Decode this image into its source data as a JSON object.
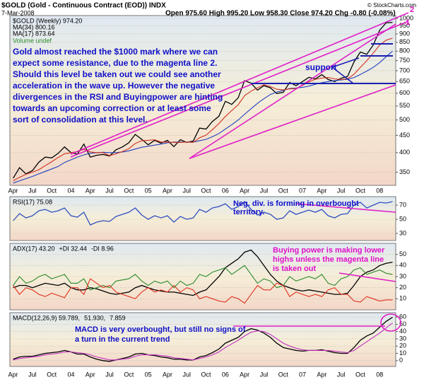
{
  "header": {
    "symbol": "$GOLD (Gold - Continuous Contract (EOD)) INDX",
    "date": "7-Mar-2008",
    "quote": "Open 975.60  High 995.20  Low 958.30  Close 974.20  Chg -0.80 (-0.08%)",
    "credit": "© StockCharts.com"
  },
  "chart_data": [
    {
      "type": "line",
      "log": true,
      "grid": true,
      "categories": [
        "Apr",
        null,
        null,
        "Jul",
        null,
        null,
        "Oct",
        null,
        null,
        "04",
        null,
        null,
        "Apr",
        null,
        null,
        "Jul",
        null,
        null,
        "Oct",
        null,
        null,
        "05",
        null,
        null,
        "Apr",
        null,
        null,
        "Jul",
        null,
        null,
        "Oct",
        null,
        null,
        "06",
        null,
        null,
        "Apr",
        null,
        null,
        "Jul",
        null,
        null,
        "Oct",
        null,
        null,
        "07",
        null,
        null,
        "Apr",
        null,
        null,
        "Jul",
        null,
        null,
        "Oct",
        null,
        null,
        "08",
        null,
        null
      ],
      "ylim": [
        320,
        1020
      ],
      "yticks": [
        350,
        400,
        450,
        500,
        550,
        600,
        650,
        700,
        750,
        800,
        850,
        900,
        950,
        1000
      ],
      "series": [
        {
          "name": "$GOLD (Weekly) 974.20",
          "color": "#000000",
          "values": [
            336,
            361,
            346,
            354,
            375,
            388,
            386,
            398,
            416,
            400,
            396,
            424,
            388,
            393,
            395,
            391,
            408,
            416,
            428,
            453,
            438,
            422,
            435,
            427,
            435,
            417,
            437,
            429,
            433,
            473,
            470,
            495,
            513,
            568,
            556,
            582,
            654,
            643,
            613,
            632,
            623,
            599,
            604,
            646,
            632,
            650,
            669,
            662,
            681,
            659,
            650,
            665,
            673,
            743,
            795,
            783,
            834,
            923,
            971,
            974
          ]
        },
        {
          "name": "MA(34) 800.16",
          "color": "#2040c0",
          "values": [
            325,
            330,
            335,
            340,
            346,
            352,
            358,
            364,
            374,
            381,
            388,
            394,
            398,
            400,
            401,
            400,
            400,
            402,
            405,
            410,
            415,
            418,
            421,
            424,
            428,
            430,
            430,
            430,
            430,
            434,
            438,
            446,
            456,
            470,
            484,
            500,
            520,
            540,
            560,
            578,
            595,
            605,
            612,
            620,
            622,
            625,
            630,
            638,
            645,
            650,
            654,
            657,
            660,
            668,
            682,
            698,
            716,
            740,
            770,
            800
          ]
        },
        {
          "name": "MA(17) 873.64",
          "color": "#d03020",
          "values": [
            330,
            338,
            345,
            350,
            356,
            366,
            376,
            387,
            397,
            400,
            403,
            409,
            402,
            400,
            400,
            392,
            397,
            403,
            411,
            426,
            434,
            435,
            437,
            430,
            430,
            429,
            429,
            430,
            429,
            443,
            451,
            468,
            488,
            512,
            533,
            555,
            590,
            609,
            623,
            636,
            628,
            617,
            614,
            618,
            620,
            633,
            649,
            660,
            666,
            668,
            662,
            659,
            662,
            683,
            716,
            749,
            789,
            834,
            862,
            874
          ]
        }
      ],
      "volume_note": "Volume undef",
      "annotations": [
        "Gold almost reached the $1000 mark where we can",
        "expect some resistance, due to the magenta line 2.",
        "Should this level be taken out we could see another",
        "acceleration in the wave up. However the negative",
        "divergences in the RSI and Buyingpower are hinting",
        "towards an upcoming correction or at least some",
        "sort of consolidation at this level."
      ],
      "support_label": "support",
      "line_labels": [
        "2",
        "1"
      ]
    },
    {
      "type": "line",
      "grid": true,
      "title": "RSI(17) 75.08",
      "ylim": [
        20,
        82
      ],
      "yticks": [
        30,
        50,
        70
      ],
      "series": [
        {
          "color": "#3050c0",
          "values": [
            48,
            58,
            52,
            55,
            62,
            64,
            60,
            62,
            66,
            55,
            53,
            60,
            42,
            46,
            48,
            47,
            54,
            57,
            60,
            66,
            56,
            50,
            55,
            52,
            55,
            46,
            54,
            50,
            52,
            64,
            60,
            66,
            68,
            72,
            64,
            68,
            75,
            64,
            56,
            60,
            57,
            50,
            52,
            62,
            57,
            60,
            63,
            60,
            64,
            55,
            52,
            57,
            58,
            70,
            74,
            66,
            70,
            74,
            73,
            75
          ]
        }
      ],
      "annotations": [
        "Neg. div. is forming in overbought",
        "territory."
      ]
    },
    {
      "type": "line",
      "grid": true,
      "ylim": [
        0,
        60
      ],
      "yticks": [
        10,
        20,
        30,
        40,
        50
      ],
      "series": [
        {
          "name": "ADX(17) 43.20",
          "color": "#000000",
          "values": [
            20,
            22,
            22,
            20,
            22,
            24,
            23,
            22,
            24,
            20,
            18,
            18,
            20,
            19,
            17,
            15,
            14,
            15,
            16,
            20,
            22,
            20,
            18,
            17,
            16,
            16,
            15,
            14,
            13,
            16,
            18,
            24,
            30,
            38,
            42,
            46,
            52,
            54,
            48,
            40,
            32,
            26,
            22,
            20,
            18,
            17,
            18,
            17,
            16,
            15,
            14,
            14,
            15,
            22,
            30,
            34,
            36,
            40,
            42,
            43
          ]
        },
        {
          "name": "+DI 32.44",
          "color": "#2c8a2c",
          "values": [
            22,
            30,
            24,
            26,
            30,
            32,
            28,
            30,
            32,
            24,
            24,
            28,
            18,
            20,
            22,
            20,
            26,
            27,
            28,
            32,
            26,
            22,
            26,
            24,
            26,
            20,
            26,
            22,
            24,
            32,
            30,
            34,
            36,
            38,
            32,
            36,
            40,
            32,
            24,
            28,
            26,
            20,
            22,
            30,
            26,
            28,
            30,
            28,
            32,
            24,
            22,
            28,
            30,
            36,
            38,
            32,
            34,
            36,
            33,
            32
          ]
        },
        {
          "name": "-DI 8.96",
          "color": "#e03020",
          "values": [
            22,
            14,
            20,
            18,
            14,
            12,
            15,
            13,
            11,
            20,
            20,
            14,
            28,
            24,
            20,
            22,
            16,
            14,
            12,
            10,
            16,
            20,
            16,
            18,
            16,
            22,
            16,
            20,
            18,
            10,
            12,
            10,
            8,
            7,
            12,
            10,
            6,
            14,
            22,
            18,
            18,
            24,
            22,
            12,
            16,
            14,
            12,
            14,
            12,
            18,
            20,
            14,
            14,
            8,
            7,
            12,
            10,
            8,
            9,
            9
          ]
        }
      ],
      "annotations": [
        "Buying power is making lower",
        "highs unless the magenta line",
        "is taken out"
      ]
    },
    {
      "type": "line",
      "grid": true,
      "categories": [
        "Apr",
        null,
        null,
        "Jul",
        null,
        null,
        "Oct",
        null,
        null,
        "04",
        null,
        null,
        "Apr",
        null,
        null,
        "Jul",
        null,
        null,
        "Oct",
        null,
        null,
        "05",
        null,
        null,
        "Apr",
        null,
        null,
        "Jul",
        null,
        null,
        "Oct",
        null,
        null,
        "06",
        null,
        null,
        "Apr",
        null,
        null,
        "Jul",
        null,
        null,
        "Oct",
        null,
        null,
        "07",
        null,
        null,
        "Apr",
        null,
        null,
        "Jul",
        null,
        null,
        "Oct",
        null,
        null,
        "08",
        null,
        null
      ],
      "ylim": [
        -8,
        66
      ],
      "yticks": [
        0,
        10,
        20,
        30,
        40,
        50,
        60
      ],
      "series": [
        {
          "name": "MACD(12,26,9) 59.789,",
          "color": "#000000",
          "values": [
            2,
            5,
            6,
            6,
            8,
            10,
            11,
            12,
            14,
            12,
            9,
            9,
            5,
            2,
            0,
            -1,
            1,
            3,
            5,
            9,
            10,
            8,
            7,
            5,
            4,
            2,
            2,
            1,
            1,
            5,
            7,
            11,
            16,
            24,
            28,
            32,
            40,
            44,
            42,
            38,
            32,
            24,
            18,
            16,
            14,
            13,
            14,
            14,
            15,
            13,
            11,
            10,
            10,
            18,
            28,
            34,
            38,
            46,
            54,
            59.8
          ]
        },
        {
          "name": "51.930,",
          "color": "#c030c0",
          "values": [
            1,
            3,
            4,
            5,
            6,
            8,
            9,
            10,
            12,
            12,
            11,
            10,
            8,
            5,
            3,
            1,
            1,
            2,
            3,
            6,
            8,
            8,
            8,
            7,
            6,
            4,
            3,
            2,
            1,
            3,
            5,
            8,
            12,
            18,
            23,
            28,
            34,
            39,
            41,
            40,
            36,
            30,
            24,
            20,
            17,
            15,
            14,
            14,
            14,
            14,
            13,
            12,
            11,
            14,
            20,
            26,
            32,
            38,
            45,
            51.9
          ]
        }
      ],
      "histogram_label": "7.859",
      "annotations": [
        "MACD is very overbought, but still no signs of",
        "a turn in the current trend"
      ]
    }
  ]
}
